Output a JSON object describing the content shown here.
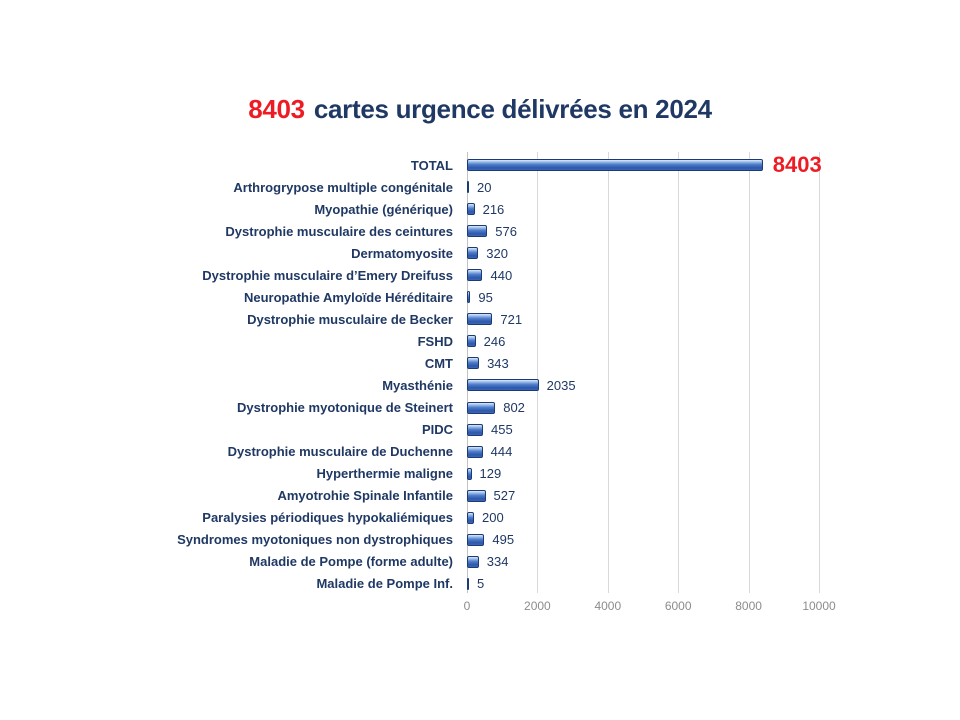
{
  "title": {
    "highlight": "8403",
    "rest": "cartes urgence délivrées en 2024"
  },
  "colors": {
    "accent_red": "#ED1C24",
    "navy_text": "#1F3864",
    "bar_border": "#1C3A73",
    "bar_body_mid": "#4E7CCB",
    "bar_body_dark": "#2E58A9",
    "bar_highlight": "#DCE9F9",
    "gridline": "#D9D9D9",
    "axis_line": "#C3C3C3",
    "tick_text": "#8C8C8C",
    "background": "#FFFFFF"
  },
  "chart_data": {
    "type": "bar",
    "orientation": "horizontal",
    "title": "8403 cartes urgence délivrées en 2024",
    "xlabel": "",
    "ylabel": "",
    "xlim": [
      0,
      10000
    ],
    "xticks": [
      0,
      2000,
      4000,
      6000,
      8000,
      10000
    ],
    "grid": true,
    "legend": false,
    "emphasized_row": "TOTAL",
    "categories": [
      "TOTAL",
      "Arthrogrypose multiple congénitale",
      "Myopathie (générique)",
      "Dystrophie musculaire des ceintures",
      "Dermatomyosite",
      "Dystrophie musculaire d’Emery Dreifuss",
      "Neuropathie Amyloïde Héréditaire",
      "Dystrophie musculaire de Becker",
      "FSHD",
      "CMT",
      "Myasthénie",
      "Dystrophie myotonique de Steinert",
      "PIDC",
      "Dystrophie musculaire de Duchenne",
      "Hyperthermie maligne",
      "Amyotrohie Spinale Infantile",
      "Paralysies périodiques hypokaliémiques",
      "Syndromes myotoniques non dystrophiques",
      "Maladie de Pompe (forme adulte)",
      "Maladie de Pompe Inf."
    ],
    "values": [
      8403,
      20,
      216,
      576,
      320,
      440,
      95,
      721,
      246,
      343,
      2035,
      802,
      455,
      444,
      129,
      527,
      200,
      495,
      334,
      5
    ]
  }
}
